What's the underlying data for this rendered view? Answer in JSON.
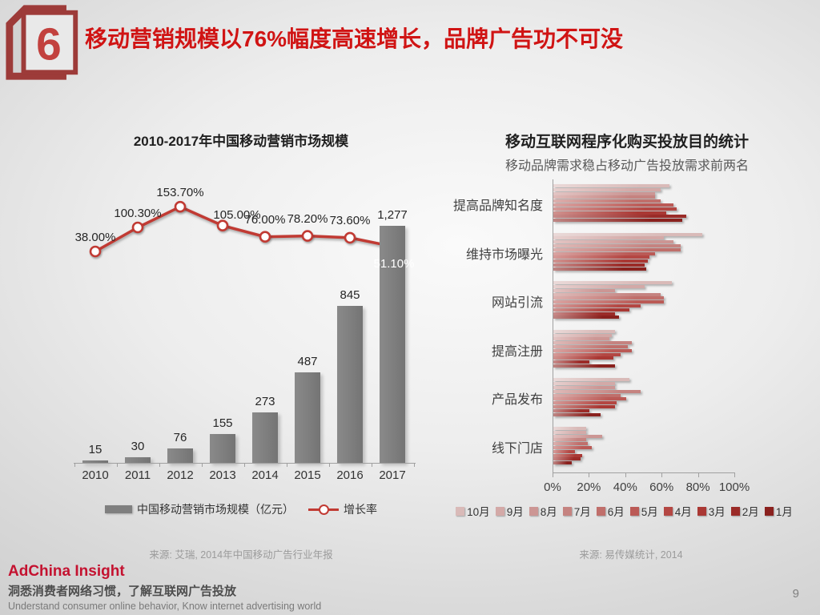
{
  "header": {
    "badge_number": "6",
    "title": "移动营销规模以76%幅度高速增长，品牌广告功不可没"
  },
  "footer": {
    "brand": "AdChina Insight",
    "tagline_zh": "洞悉消费者网络习惯，了解互联网广告投放",
    "tagline_en": "Understand consumer online behavior, Know internet advertising world",
    "page_number": "9"
  },
  "chart_data": [
    {
      "id": "china-mobile-marketing-market-size",
      "type": "bar+line",
      "title": "2010-2017年中国移动营销市场规模",
      "categories": [
        "2010",
        "2011",
        "2012",
        "2013",
        "2014",
        "2015",
        "2016",
        "2017"
      ],
      "series": [
        {
          "name": "中国移动营销市场规模（亿元）",
          "type": "bar",
          "values": [
            15,
            30,
            76,
            155,
            273,
            487,
            845,
            1277
          ],
          "labels": [
            "15",
            "30",
            "76",
            "155",
            "273",
            "487",
            "845",
            "1,277"
          ],
          "color": "#7f7f7f"
        },
        {
          "name": "增长率",
          "type": "line",
          "values": [
            38.0,
            100.3,
            153.7,
            105.0,
            76.0,
            78.2,
            73.6,
            51.1
          ],
          "labels": [
            "38.00%",
            "100.30%",
            "153.70%",
            "105.00%",
            "76.00%",
            "78.20%",
            "73.60%",
            "51.10%"
          ],
          "color": "#c13a33"
        }
      ],
      "bar_axis_range": [
        0,
        1400
      ],
      "line_axis_unit": "percent",
      "grid": false,
      "legend_position": "bottom",
      "source": "来源: 艾瑞, 2014年中国移动广告行业年报"
    },
    {
      "id": "programmatic-buying-purpose-stats",
      "type": "grouped-horizontal-bar",
      "title": "移动互联网程序化购买投放目的统计",
      "subtitle": "移动品牌需求稳占移动广告投放需求前两名",
      "categories": [
        "提高品牌知名度",
        "维持市场曝光",
        "网站引流",
        "提高注册",
        "产品发布",
        "线下门店"
      ],
      "x_ticks": [
        "0%",
        "20%",
        "40%",
        "60%",
        "80%",
        "100%"
      ],
      "xlim": [
        0,
        100
      ],
      "grid": false,
      "legend_position": "bottom",
      "series": [
        {
          "name": "10月",
          "color": "#d9bab8",
          "values": [
            64,
            82,
            65,
            34,
            42,
            18
          ]
        },
        {
          "name": "9月",
          "color": "#d3a9a7",
          "values": [
            59,
            61,
            50,
            32,
            34,
            18
          ]
        },
        {
          "name": "8月",
          "color": "#cc9694",
          "values": [
            56,
            66,
            34,
            31,
            34,
            27
          ]
        },
        {
          "name": "7月",
          "color": "#c58380",
          "values": [
            56,
            70,
            59,
            43,
            48,
            18
          ]
        },
        {
          "name": "6月",
          "color": "#c06f6b",
          "values": [
            59,
            70,
            61,
            41,
            37,
            19
          ]
        },
        {
          "name": "5月",
          "color": "#bb5a56",
          "values": [
            66,
            56,
            61,
            43,
            40,
            21
          ]
        },
        {
          "name": "4月",
          "color": "#b44743",
          "values": [
            68,
            53,
            48,
            37,
            35,
            12
          ]
        },
        {
          "name": "3月",
          "color": "#aa3834",
          "values": [
            62,
            52,
            42,
            33,
            34,
            16
          ]
        },
        {
          "name": "2月",
          "color": "#9b2b28",
          "values": [
            73,
            50,
            34,
            20,
            20,
            15
          ]
        },
        {
          "name": "1月",
          "color": "#8a211e",
          "values": [
            71,
            51,
            36,
            34,
            26,
            10
          ]
        }
      ],
      "source": "来源: 易传媒统计, 2014"
    }
  ]
}
